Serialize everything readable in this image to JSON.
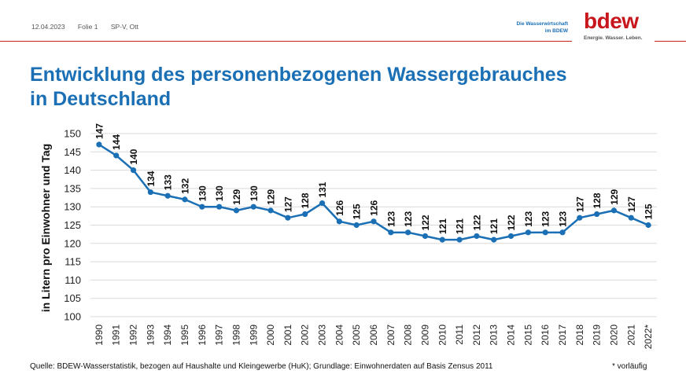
{
  "header": {
    "date": "12.04.2023",
    "slide": "Folie 1",
    "author": "SP-V, Ott",
    "org_line1": "Die Wasserwirtschaft",
    "org_line2": "im BDEW",
    "logo_text": "bdew",
    "logo_tagline": "Energie. Wasser. Leben."
  },
  "title_line1": "Entwicklung des personenbezogenen Wassergebrauches",
  "title_line2": "in Deutschland",
  "footer": {
    "source": "Quelle: BDEW-Wasserstatistik, bezogen auf Haushalte und Kleingewerbe (HuK); Grundlage: Einwohnerdaten auf Basis Zensus 2011",
    "note": "* vorläufig"
  },
  "colors": {
    "line": "#1a6fb5",
    "title": "#1a6fb5",
    "accent_red": "#c8161d",
    "grid": "#d9d9d9"
  },
  "chart_data": {
    "type": "line",
    "title": "Entwicklung des personenbezogenen Wassergebrauches in Deutschland",
    "xlabel": "",
    "ylabel": "in Litern pro Einwohner und Tag",
    "ylim": [
      100,
      150
    ],
    "yticks": [
      100,
      105,
      110,
      115,
      120,
      125,
      130,
      135,
      140,
      145,
      150
    ],
    "grid": true,
    "legend": "none",
    "categories": [
      "1990",
      "1991",
      "1992",
      "1993",
      "1994",
      "1995",
      "1996",
      "1997",
      "1998",
      "1999",
      "2000",
      "2001",
      "2002",
      "2003",
      "2004",
      "2005",
      "2006",
      "2007",
      "2008",
      "2009",
      "2010",
      "2011",
      "2012",
      "2013",
      "2014",
      "2015",
      "2016",
      "2017",
      "2018",
      "2019",
      "2020",
      "2021",
      "2022*"
    ],
    "series": [
      {
        "name": "Wassergebrauch",
        "values": [
          147,
          144,
          140,
          134,
          133,
          132,
          130,
          130,
          129,
          130,
          129,
          127,
          128,
          131,
          126,
          125,
          126,
          123,
          123,
          122,
          121,
          121,
          122,
          121,
          122,
          123,
          123,
          123,
          127,
          128,
          129,
          127,
          125
        ]
      }
    ],
    "data_labels": true
  }
}
